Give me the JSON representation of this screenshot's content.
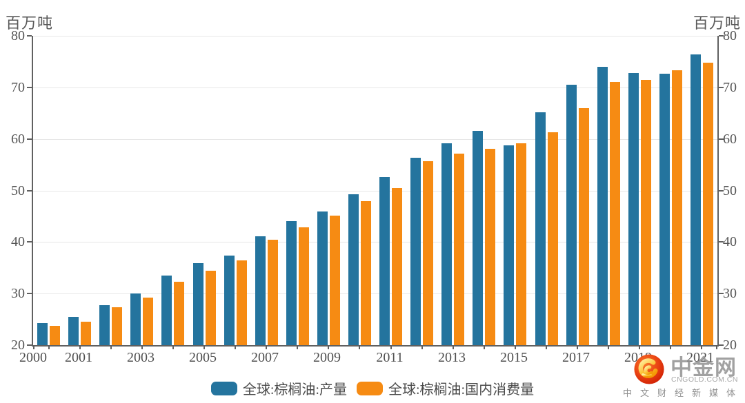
{
  "accent_colors": {
    "production_blue": "#24749E",
    "consumption_orange": "#F68B13",
    "axis": "#606060",
    "gridline": "#E7E7E7",
    "label_gray": "#555555"
  },
  "chart_data": {
    "type": "bar",
    "title": "",
    "unit_label_left": "百万吨",
    "unit_label_right": "百万吨",
    "categories": [
      "2000",
      "2001",
      "2002",
      "2003",
      "2004",
      "2005",
      "2006",
      "2007",
      "2008",
      "2009",
      "2010",
      "2011",
      "2012",
      "2013",
      "2014",
      "2015",
      "2016",
      "2017",
      "2018",
      "2019",
      "2020",
      "2021"
    ],
    "series": [
      {
        "name": "全球:棕榈油:产量",
        "color": "#24749E",
        "values": [
          24.3,
          25.5,
          27.8,
          30.0,
          33.5,
          35.9,
          37.4,
          41.1,
          44.0,
          45.9,
          49.3,
          52.6,
          56.4,
          59.1,
          61.6,
          58.8,
          65.2,
          70.5,
          74.0,
          72.8,
          72.7,
          76.4
        ]
      },
      {
        "name": "全球:棕榈油:国内消费量",
        "color": "#F68B13",
        "values": [
          23.7,
          24.5,
          27.3,
          29.2,
          32.3,
          34.4,
          36.4,
          40.4,
          42.9,
          45.1,
          47.9,
          50.5,
          55.7,
          57.1,
          58.1,
          59.2,
          61.3,
          66.0,
          71.0,
          71.4,
          73.3,
          74.8
        ]
      }
    ],
    "ylim": [
      20,
      80
    ],
    "y_ticks": [
      20,
      30,
      40,
      50,
      60,
      70,
      80
    ],
    "x_tick_labels_shown": [
      "2000",
      "2001",
      "2003",
      "2005",
      "2007",
      "2009",
      "2011",
      "2013",
      "2015",
      "2017",
      "2019",
      "2021"
    ],
    "grid": true,
    "legend_position": "bottom"
  },
  "watermark": {
    "name": "中金网",
    "domain": "CNGOLD.COM.CN",
    "tagline": "中文财经新媒体"
  }
}
